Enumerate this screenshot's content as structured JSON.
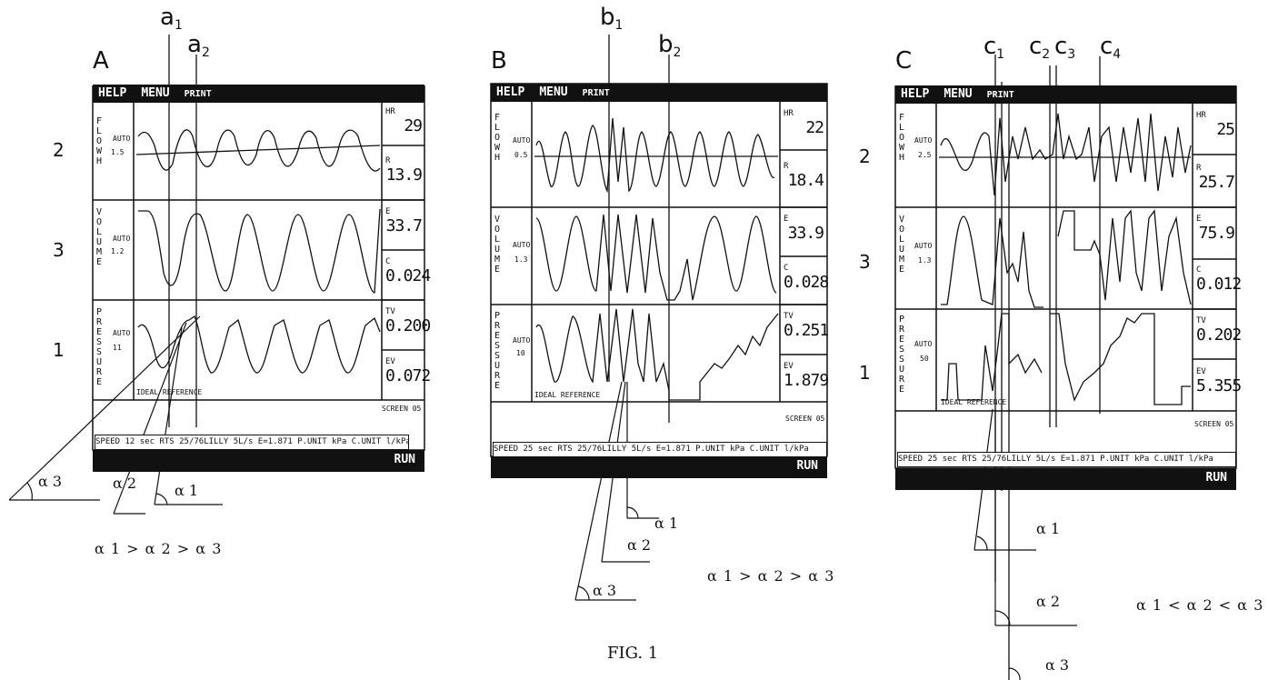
{
  "caption": "FIG. 1",
  "common_ui": {
    "help": "HELP",
    "menu": "MENU",
    "print": "PRINT",
    "run": "RUN",
    "auto": "AUTO",
    "trace_labels": [
      "FLOWH",
      "VOLUME",
      "PRESSURE"
    ],
    "side_labels": [
      "2",
      "3",
      "1"
    ],
    "readout_keys": [
      "HR",
      "R",
      "E",
      "C",
      "TV",
      "EV"
    ]
  },
  "panels": [
    {
      "letter": "A",
      "cursors": [
        {
          "name": "a",
          "sub": "1"
        },
        {
          "name": "a",
          "sub": "2"
        }
      ],
      "scales": [
        "1.5",
        "1.2",
        "11"
      ],
      "readouts": [
        "29",
        "13.9",
        "33.7",
        "0.024",
        "0.200",
        "0.072"
      ],
      "screen": "SCREEN 05",
      "status": "SPEED 12 sec  RTS 25/76LILLY  5L/s  E=1.871  P.UNIT kPa  C.UNIT l/kPa",
      "reference": "IDEAL REFERENCE",
      "angles": [
        "α 1",
        "α 2",
        "α 3"
      ],
      "relation": "α 1 > α 2 > α 3"
    },
    {
      "letter": "B",
      "cursors": [
        {
          "name": "b",
          "sub": "1"
        },
        {
          "name": "b",
          "sub": "2"
        }
      ],
      "scales": [
        "0.5",
        "1.3",
        "10"
      ],
      "readouts": [
        "22",
        "18.4",
        "33.9",
        "0.028",
        "0.251",
        "1.879"
      ],
      "screen": "SCREEN 05",
      "status": "SPEED 25 sec  RTS 25/76LILLY  5L/s  E=1.871  P.UNIT kPa  C.UNIT l/kPa",
      "reference": "IDEAL REFERENCE",
      "angles": [
        "α 1",
        "α 2",
        "α 3"
      ],
      "relation": "α 1 > α 2 > α 3"
    },
    {
      "letter": "C",
      "cursors": [
        {
          "name": "c",
          "sub": "1"
        },
        {
          "name": "c",
          "sub": "2"
        },
        {
          "name": "c",
          "sub": "3"
        },
        {
          "name": "c",
          "sub": "4"
        }
      ],
      "scales": [
        "2.5",
        "1.3",
        "50"
      ],
      "readouts": [
        "25",
        "25.7",
        "75.9",
        "0.012",
        "0.202",
        "5.355"
      ],
      "screen": "SCREEN 05",
      "status": "SPEED 25 sec  RTS 25/76LILLY  5L/s  E=1.871  P.UNIT kPa  C.UNIT l/kPa",
      "reference": "IDEAL REFERENCE",
      "angles": [
        "α 1",
        "α 2",
        "α 3"
      ],
      "relation": "α 1 < α 2 < α 3"
    }
  ]
}
